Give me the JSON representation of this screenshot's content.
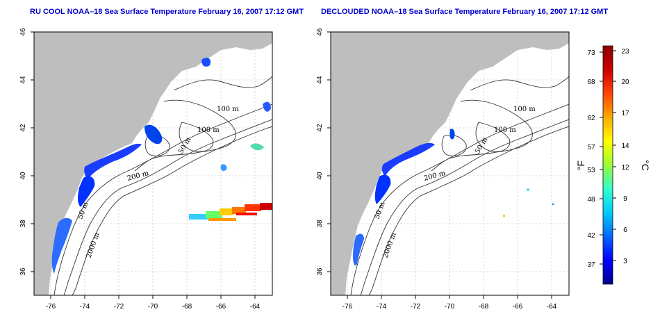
{
  "panels": [
    {
      "title": "RU COOL NOAA–18 Sea Surface Temperature February 16, 2007 17:12 GMT",
      "contour_labels": [
        "100 m",
        "100 m",
        "50 m",
        "200 m",
        "50 m",
        "2000 m"
      ]
    },
    {
      "title": "DECLOUDED NOAA–18 Sea Surface Temperature February 16, 2007 17:12 GMT",
      "contour_labels": [
        "100 m",
        "100 m",
        "50 m",
        "200 m",
        "50 m",
        "2000 m"
      ]
    }
  ],
  "axes": {
    "longitude_ticks": [
      "-76",
      "-74",
      "-72",
      "-70",
      "-68",
      "-66",
      "-64"
    ],
    "latitude_ticks": [
      "46",
      "44",
      "42",
      "40",
      "38",
      "36"
    ],
    "lon_range": [
      -77,
      -63
    ],
    "lat_range": [
      35,
      46
    ]
  },
  "colorbar": {
    "fahrenheit_label": "°F",
    "celsius_label": "°C",
    "fahrenheit_ticks": [
      "73",
      "68",
      "62",
      "57",
      "53",
      "48",
      "42",
      "37"
    ],
    "celsius_ticks": [
      "23",
      "20",
      "17",
      "14",
      "12",
      "9",
      "6",
      "3"
    ],
    "colors": [
      "#00008b",
      "#0000ff",
      "#0066ff",
      "#00ccff",
      "#33ffcc",
      "#99ff33",
      "#ffff00",
      "#ffaa00",
      "#ff4400",
      "#cc0000",
      "#8b0000"
    ]
  },
  "colors": {
    "land": "#bebebe",
    "title": "#0000cc",
    "grid": "#c8c8c8"
  }
}
